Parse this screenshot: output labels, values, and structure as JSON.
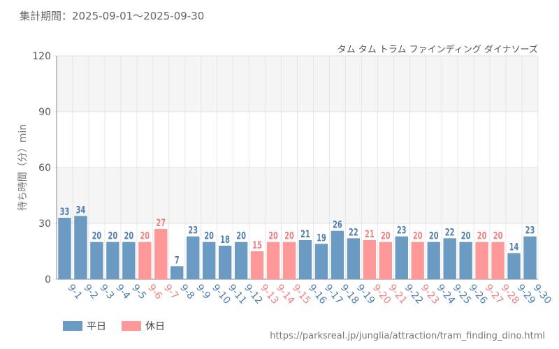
{
  "header": {
    "period": "集計期間：2025-09-01～2025-09-30"
  },
  "footer": {
    "source": "https://parksreal.jp/junglia/attraction/tram_finding_dino.html"
  },
  "colors": {
    "weekday": "#6b9bc3",
    "holiday": "#ff9999",
    "weekday_text": "#4f7fae",
    "holiday_text": "#f07f7f"
  },
  "chart_data": {
    "type": "bar",
    "title": "タム タム トラム ファインディング ダイナソーズ",
    "ylabel": "待ち時間（分）min",
    "xlabel": "",
    "ylim": [
      0,
      120
    ],
    "yticks": [
      "0",
      "30",
      "60",
      "90",
      "120"
    ],
    "categories": [
      "9-1",
      "9-2",
      "9-3",
      "9-4",
      "9-5",
      "9-6",
      "9-7",
      "9-8",
      "9-9",
      "9-10",
      "9-11",
      "9-12",
      "9-13",
      "9-14",
      "9-15",
      "9-16",
      "9-17",
      "9-18",
      "9-19",
      "9-20",
      "9-21",
      "9-22",
      "9-23",
      "9-24",
      "9-25",
      "9-26",
      "9-27",
      "9-28",
      "9-29",
      "9-30"
    ],
    "values": [
      33,
      34,
      20,
      20,
      20,
      20,
      27,
      7,
      23,
      20,
      18,
      20,
      15,
      20,
      20,
      21,
      19,
      26,
      22,
      21,
      20,
      23,
      20,
      20,
      22,
      20,
      20,
      20,
      14,
      23
    ],
    "value_labels": [
      "33",
      "34",
      "20",
      "20",
      "20",
      "20",
      "27",
      "7",
      "23",
      "20",
      "18",
      "20",
      "15",
      "20",
      "20",
      "21",
      "19",
      "26",
      "22",
      "21",
      "20",
      "23",
      "20",
      "20",
      "22",
      "20",
      "20",
      "20",
      "14",
      "23"
    ],
    "day_type": [
      "weekday",
      "weekday",
      "weekday",
      "weekday",
      "weekday",
      "holiday",
      "holiday",
      "weekday",
      "weekday",
      "weekday",
      "weekday",
      "weekday",
      "holiday",
      "holiday",
      "holiday",
      "weekday",
      "weekday",
      "weekday",
      "weekday",
      "holiday",
      "holiday",
      "weekday",
      "holiday",
      "weekday",
      "weekday",
      "weekday",
      "holiday",
      "holiday",
      "weekday",
      "weekday"
    ],
    "legend": [
      {
        "key": "weekday",
        "label": "平日"
      },
      {
        "key": "holiday",
        "label": "休日"
      }
    ]
  }
}
